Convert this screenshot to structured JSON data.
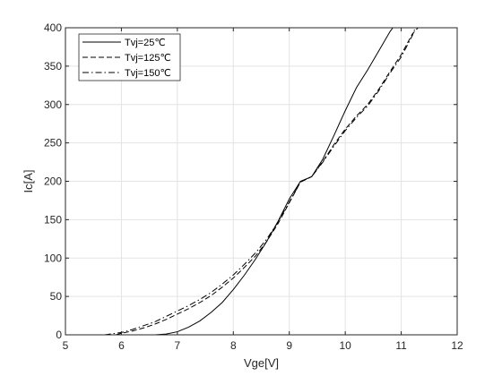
{
  "chart_data": {
    "type": "line",
    "title": "",
    "xlabel": "Vge[V]",
    "ylabel": "Ic[A]",
    "xlim": [
      5,
      12
    ],
    "ylim": [
      0,
      400
    ],
    "xticks": [
      "5",
      "6",
      "7",
      "8",
      "9",
      "10",
      "11",
      "12"
    ],
    "yticks": [
      "0",
      "50",
      "100",
      "150",
      "200",
      "250",
      "300",
      "350",
      "400"
    ],
    "grid": true,
    "legend_position": "top-left",
    "series": [
      {
        "name": "Tvj=25℃",
        "style": "solid",
        "color": "#000000",
        "points": [
          [
            6.6,
            0
          ],
          [
            6.8,
            1
          ],
          [
            7.0,
            4
          ],
          [
            7.2,
            10
          ],
          [
            7.4,
            18
          ],
          [
            7.6,
            29
          ],
          [
            7.8,
            42
          ],
          [
            8.0,
            59
          ],
          [
            8.2,
            78
          ],
          [
            8.4,
            99
          ],
          [
            8.6,
            122
          ],
          [
            8.8,
            148
          ],
          [
            9.0,
            177
          ],
          [
            9.2,
            200
          ],
          [
            9.4,
            206
          ],
          [
            9.6,
            229
          ],
          [
            9.8,
            260
          ],
          [
            10.0,
            292
          ],
          [
            10.2,
            322
          ],
          [
            10.4,
            345
          ],
          [
            10.6,
            370
          ],
          [
            10.8,
            395
          ],
          [
            10.85,
            400
          ]
        ]
      },
      {
        "name": "Tvj=125℃",
        "style": "dashed",
        "color": "#000000",
        "points": [
          [
            5.9,
            0
          ],
          [
            6.0,
            2
          ],
          [
            6.2,
            5
          ],
          [
            6.4,
            9
          ],
          [
            6.6,
            14
          ],
          [
            6.8,
            20
          ],
          [
            7.0,
            27
          ],
          [
            7.2,
            34
          ],
          [
            7.4,
            42
          ],
          [
            7.6,
            51
          ],
          [
            7.8,
            62
          ],
          [
            8.0,
            74
          ],
          [
            8.2,
            88
          ],
          [
            8.4,
            103
          ],
          [
            8.6,
            122
          ],
          [
            8.8,
            145
          ],
          [
            9.0,
            172
          ],
          [
            9.2,
            199
          ],
          [
            9.4,
            206
          ],
          [
            9.6,
            226
          ],
          [
            9.8,
            248
          ],
          [
            10.0,
            268
          ],
          [
            10.2,
            285
          ],
          [
            10.4,
            300
          ],
          [
            10.6,
            320
          ],
          [
            10.8,
            343
          ],
          [
            11.0,
            365
          ],
          [
            11.2,
            392
          ],
          [
            11.3,
            400
          ]
        ]
      },
      {
        "name": "Tvj=150℃",
        "style": "dashdot",
        "color": "#000000",
        "points": [
          [
            5.7,
            0
          ],
          [
            5.8,
            1
          ],
          [
            6.0,
            3
          ],
          [
            6.2,
            7
          ],
          [
            6.4,
            12
          ],
          [
            6.6,
            17
          ],
          [
            6.8,
            24
          ],
          [
            7.0,
            31
          ],
          [
            7.2,
            38
          ],
          [
            7.4,
            46
          ],
          [
            7.6,
            55
          ],
          [
            7.8,
            66
          ],
          [
            8.0,
            78
          ],
          [
            8.2,
            92
          ],
          [
            8.4,
            107
          ],
          [
            8.6,
            125
          ],
          [
            8.8,
            147
          ],
          [
            9.0,
            173
          ],
          [
            9.2,
            199
          ],
          [
            9.4,
            206
          ],
          [
            9.6,
            225
          ],
          [
            9.8,
            246
          ],
          [
            10.0,
            266
          ],
          [
            10.2,
            283
          ],
          [
            10.4,
            298
          ],
          [
            10.6,
            318
          ],
          [
            10.8,
            341
          ],
          [
            11.0,
            362
          ],
          [
            11.2,
            390
          ],
          [
            11.25,
            400
          ]
        ]
      }
    ]
  }
}
